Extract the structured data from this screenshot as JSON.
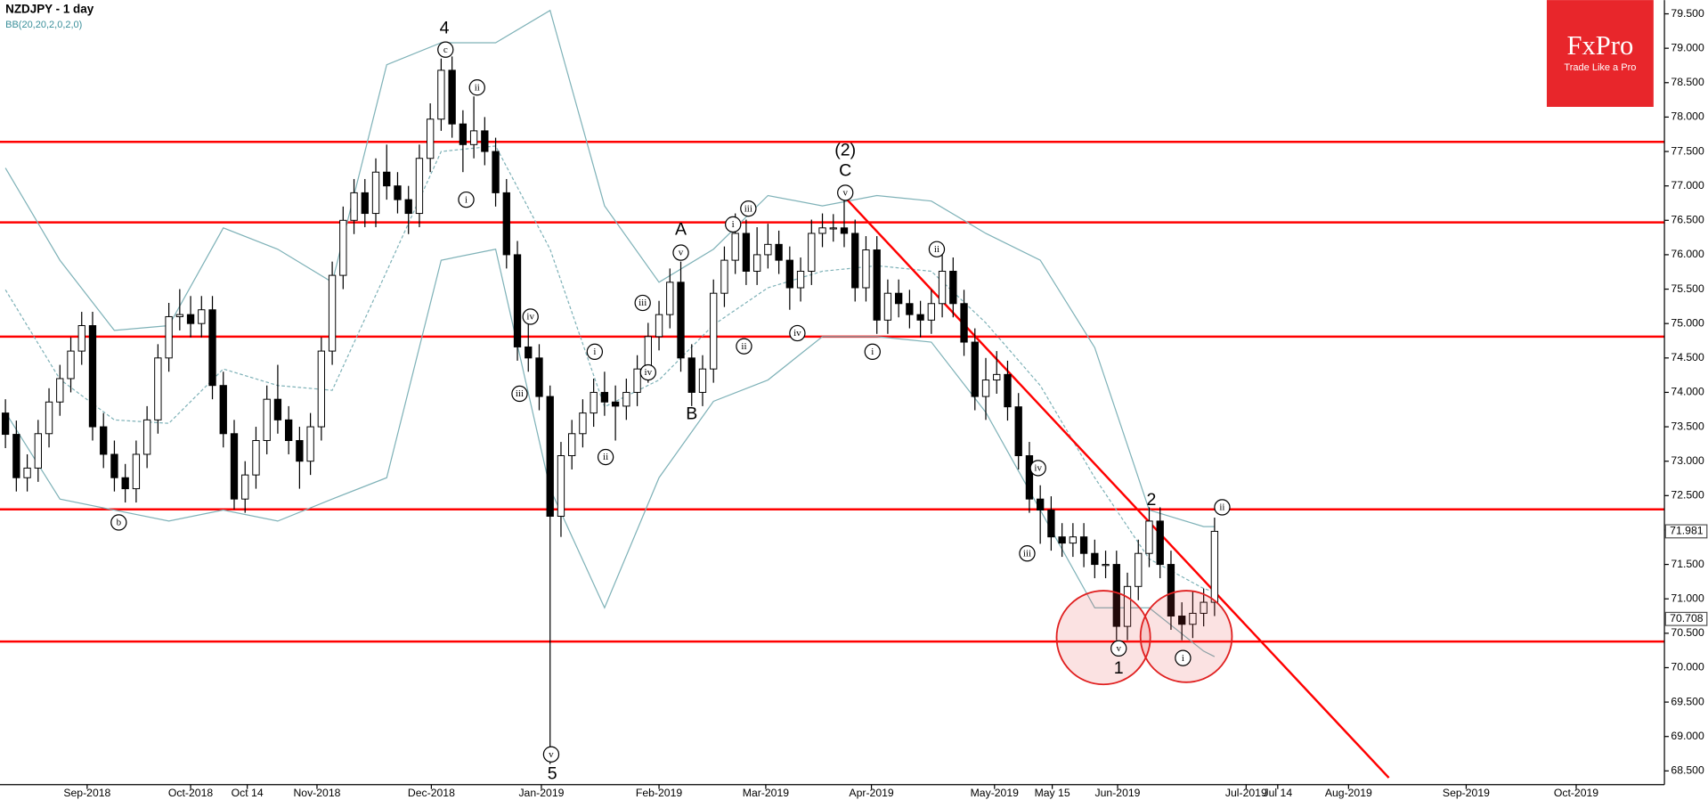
{
  "chart_data": {
    "type": "candlestick",
    "title": "NZDJPY - 1 day",
    "subtitle": "BB(20,20,2,0,2,0)",
    "up_color": "#ffffff",
    "down_color": "#000000",
    "band_color": "#7fb2b8",
    "level_color": "#ff0000",
    "ylim": [
      68.3,
      79.7
    ],
    "xlim": [
      -0.5,
      152.3
    ],
    "yticks": [
      {
        "value": 68.5,
        "label": "68.500"
      },
      {
        "value": 69,
        "label": "69.000"
      },
      {
        "value": 69.5,
        "label": "69.500"
      },
      {
        "value": 70,
        "label": "70.000"
      },
      {
        "value": 70.5,
        "label": "70.500"
      },
      {
        "value": 71,
        "label": "71.000"
      },
      {
        "value": 71.5,
        "label": "71.500"
      },
      {
        "value": 72,
        "label": "72.000"
      },
      {
        "value": 72.5,
        "label": "72.500"
      },
      {
        "value": 73,
        "label": "73.000"
      },
      {
        "value": 73.5,
        "label": "73.500"
      },
      {
        "value": 74,
        "label": "74.000"
      },
      {
        "value": 74.5,
        "label": "74.500"
      },
      {
        "value": 75,
        "label": "75.000"
      },
      {
        "value": 75.5,
        "label": "75.500"
      },
      {
        "value": 76,
        "label": "76.000"
      },
      {
        "value": 76.5,
        "label": "76.500"
      },
      {
        "value": 77,
        "label": "77.000"
      },
      {
        "value": 77.5,
        "label": "77.500"
      },
      {
        "value": 78,
        "label": "78.000"
      },
      {
        "value": 78.5,
        "label": "78.500"
      },
      {
        "value": 79,
        "label": "79.000"
      },
      {
        "value": 79.5,
        "label": "79.500"
      }
    ],
    "xticks": [
      {
        "value": 7.5,
        "label": "Sep-2018"
      },
      {
        "value": 17,
        "label": "Oct-2018"
      },
      {
        "value": 22.2,
        "label": "Oct 14"
      },
      {
        "value": 28.6,
        "label": "Nov-2018"
      },
      {
        "value": 39.1,
        "label": "Dec-2018"
      },
      {
        "value": 49.2,
        "label": "Jan-2019"
      },
      {
        "value": 60,
        "label": "Feb-2019"
      },
      {
        "value": 69.8,
        "label": "Mar-2019"
      },
      {
        "value": 79.5,
        "label": "Apr-2019"
      },
      {
        "value": 90.8,
        "label": "May-2019"
      },
      {
        "value": 96.1,
        "label": "May 15"
      },
      {
        "value": 102.1,
        "label": "Jun-2019"
      },
      {
        "value": 113.9,
        "label": "Jul-2019"
      },
      {
        "value": 116.8,
        "label": "Jul 14"
      },
      {
        "value": 123.3,
        "label": "Aug-2019"
      },
      {
        "value": 134.1,
        "label": "Sep-2019"
      },
      {
        "value": 144.2,
        "label": "Oct-2019"
      }
    ],
    "series": [
      {
        "ohlc": [
          [
            73.7,
            73.9,
            73.19,
            73.39
          ],
          [
            73.39,
            73.59,
            72.56,
            72.76
          ],
          [
            72.76,
            73.1,
            72.56,
            72.9
          ],
          [
            72.9,
            73.6,
            72.7,
            73.4
          ],
          [
            73.4,
            74.06,
            73.2,
            73.86
          ],
          [
            73.86,
            74.4,
            73.66,
            74.2
          ],
          [
            74.2,
            74.8,
            74.0,
            74.6
          ],
          [
            74.6,
            75.17,
            74.4,
            74.97
          ],
          [
            74.97,
            75.17,
            73.3,
            73.5
          ],
          [
            73.5,
            73.7,
            72.9,
            73.1
          ],
          [
            73.1,
            73.3,
            72.56,
            72.76
          ],
          [
            72.76,
            72.96,
            72.4,
            72.6
          ],
          [
            72.6,
            73.3,
            72.4,
            73.1
          ],
          [
            73.1,
            73.8,
            72.9,
            73.6
          ],
          [
            73.6,
            74.7,
            73.4,
            74.5
          ],
          [
            74.5,
            75.3,
            74.3,
            75.1
          ],
          [
            75.1,
            75.5,
            74.9,
            75.13
          ],
          [
            75.13,
            75.4,
            74.8,
            75.0
          ],
          [
            75.0,
            75.4,
            74.8,
            75.2
          ],
          [
            75.2,
            75.4,
            73.9,
            74.1
          ],
          [
            74.1,
            74.3,
            73.2,
            73.4
          ],
          [
            73.4,
            73.6,
            72.3,
            72.45
          ],
          [
            72.45,
            73.0,
            72.25,
            72.8
          ],
          [
            72.8,
            73.5,
            72.6,
            73.3
          ],
          [
            73.3,
            74.1,
            73.1,
            73.9
          ],
          [
            73.9,
            74.4,
            73.4,
            73.6
          ],
          [
            73.6,
            73.8,
            73.1,
            73.3
          ],
          [
            73.3,
            73.5,
            72.6,
            73.0
          ],
          [
            73.0,
            73.7,
            72.8,
            73.5
          ],
          [
            73.5,
            74.8,
            73.3,
            74.6
          ],
          [
            74.6,
            75.9,
            74.4,
            75.7
          ],
          [
            75.7,
            76.7,
            75.5,
            76.5
          ],
          [
            76.5,
            77.1,
            76.3,
            76.9
          ],
          [
            76.9,
            77.1,
            76.4,
            76.6
          ],
          [
            76.6,
            77.4,
            76.4,
            77.2
          ],
          [
            77.2,
            77.6,
            76.8,
            77.0
          ],
          [
            77.0,
            77.2,
            76.6,
            76.8
          ],
          [
            76.8,
            77.0,
            76.3,
            76.6
          ],
          [
            76.6,
            77.6,
            76.4,
            77.4
          ],
          [
            77.4,
            78.2,
            77.2,
            77.97
          ],
          [
            77.97,
            78.85,
            77.8,
            78.68
          ],
          [
            78.68,
            78.88,
            77.7,
            77.9
          ],
          [
            77.9,
            78.1,
            77.2,
            77.6
          ],
          [
            77.6,
            78.3,
            77.4,
            77.8
          ],
          [
            77.8,
            78.0,
            77.3,
            77.5
          ],
          [
            77.5,
            77.7,
            76.7,
            76.9
          ],
          [
            76.9,
            77.1,
            75.8,
            76.0
          ],
          [
            76.0,
            76.2,
            74.46,
            74.66
          ],
          [
            74.66,
            75.0,
            74.3,
            74.5
          ],
          [
            74.5,
            74.7,
            73.74,
            73.94
          ],
          [
            73.94,
            74.1,
            68.6,
            72.2
          ],
          [
            72.2,
            73.28,
            71.9,
            73.08
          ],
          [
            73.08,
            73.6,
            72.88,
            73.4
          ],
          [
            73.4,
            73.9,
            73.2,
            73.7
          ],
          [
            73.7,
            74.2,
            73.5,
            74.0
          ],
          [
            74.0,
            74.3,
            73.66,
            73.86
          ],
          [
            73.86,
            74.1,
            73.3,
            73.8
          ],
          [
            73.8,
            74.2,
            73.6,
            74.0
          ],
          [
            74.0,
            74.54,
            73.8,
            74.34
          ],
          [
            74.34,
            75.01,
            74.14,
            74.81
          ],
          [
            74.81,
            75.33,
            74.61,
            75.13
          ],
          [
            75.13,
            75.8,
            74.93,
            75.6
          ],
          [
            75.6,
            75.9,
            74.3,
            74.5
          ],
          [
            74.5,
            74.7,
            73.8,
            74.0
          ],
          [
            74.0,
            74.54,
            73.8,
            74.34
          ],
          [
            74.34,
            75.64,
            74.14,
            75.44
          ],
          [
            75.44,
            76.12,
            75.24,
            75.92
          ],
          [
            75.92,
            76.6,
            75.72,
            76.31
          ],
          [
            76.31,
            76.51,
            75.56,
            75.76
          ],
          [
            75.76,
            76.4,
            75.56,
            76.0
          ],
          [
            76.0,
            76.45,
            75.8,
            76.15
          ],
          [
            76.15,
            76.35,
            75.72,
            75.92
          ],
          [
            75.92,
            76.12,
            75.2,
            75.52
          ],
          [
            75.52,
            75.96,
            75.32,
            75.76
          ],
          [
            75.76,
            76.51,
            75.56,
            76.31
          ],
          [
            76.31,
            76.6,
            76.11,
            76.39
          ],
          [
            76.39,
            76.59,
            76.19,
            76.39
          ],
          [
            76.39,
            76.8,
            76.11,
            76.31
          ],
          [
            76.31,
            76.51,
            75.32,
            75.52
          ],
          [
            75.52,
            76.27,
            75.32,
            76.07
          ],
          [
            76.07,
            76.27,
            74.85,
            75.05
          ],
          [
            75.05,
            75.64,
            74.85,
            75.44
          ],
          [
            75.44,
            75.64,
            75.09,
            75.29
          ],
          [
            75.29,
            75.49,
            74.93,
            75.13
          ],
          [
            75.13,
            75.33,
            74.8,
            75.05
          ],
          [
            75.05,
            75.49,
            74.85,
            75.29
          ],
          [
            75.29,
            76.0,
            75.09,
            75.76
          ],
          [
            75.76,
            75.96,
            75.09,
            75.29
          ],
          [
            75.29,
            75.49,
            74.53,
            74.73
          ],
          [
            74.73,
            74.93,
            73.74,
            73.94
          ],
          [
            73.94,
            74.5,
            73.6,
            74.18
          ],
          [
            74.18,
            74.6,
            73.98,
            74.26
          ],
          [
            74.26,
            74.46,
            73.59,
            73.79
          ],
          [
            73.79,
            73.99,
            72.88,
            73.08
          ],
          [
            73.08,
            73.28,
            72.25,
            72.45
          ],
          [
            72.45,
            72.65,
            71.8,
            72.29
          ],
          [
            72.29,
            72.49,
            71.7,
            71.9
          ],
          [
            71.9,
            72.1,
            71.61,
            71.81
          ],
          [
            71.81,
            72.1,
            71.61,
            71.9
          ],
          [
            71.9,
            72.1,
            71.46,
            71.66
          ],
          [
            71.66,
            71.86,
            71.3,
            71.5
          ],
          [
            71.5,
            71.7,
            71.3,
            71.5
          ],
          [
            71.5,
            71.7,
            70.4,
            70.6
          ],
          [
            70.6,
            71.38,
            70.4,
            71.18
          ],
          [
            71.18,
            71.86,
            70.98,
            71.66
          ],
          [
            71.66,
            72.33,
            71.46,
            72.13
          ],
          [
            72.13,
            72.33,
            71.3,
            71.5
          ],
          [
            71.5,
            71.7,
            70.55,
            70.75
          ],
          [
            70.75,
            70.95,
            70.4,
            70.63
          ],
          [
            70.63,
            71.1,
            70.43,
            70.79
          ],
          [
            70.79,
            71.15,
            70.6,
            70.95
          ],
          [
            70.95,
            72.18,
            70.75,
            71.981
          ]
        ]
      }
    ],
    "bollinger": {
      "x": [
        0,
        5,
        10,
        15,
        20,
        25,
        30,
        35,
        40,
        45,
        50,
        55,
        60,
        65,
        70,
        75,
        80,
        85,
        90,
        95,
        100,
        105,
        110,
        111
      ],
      "upper": [
        77.26,
        75.92,
        74.9,
        74.97,
        76.39,
        76.08,
        75.6,
        78.76,
        79.08,
        79.08,
        79.55,
        76.71,
        75.6,
        76.08,
        76.86,
        76.71,
        76.86,
        76.78,
        76.31,
        75.92,
        74.65,
        72.29,
        72.05,
        72.05
      ],
      "middle": [
        75.49,
        74.19,
        73.6,
        73.55,
        74.34,
        74.1,
        74.03,
        75.76,
        77.5,
        77.58,
        76.08,
        73.79,
        74.18,
        74.98,
        75.52,
        75.76,
        75.84,
        75.76,
        75.01,
        74.1,
        72.76,
        71.58,
        71.15,
        71.1
      ],
      "lower": [
        73.71,
        72.45,
        72.29,
        72.13,
        72.29,
        72.13,
        72.45,
        72.76,
        75.92,
        76.08,
        72.6,
        70.87,
        72.76,
        73.87,
        74.18,
        74.81,
        74.81,
        74.73,
        73.71,
        72.29,
        70.87,
        70.87,
        70.24,
        70.16
      ]
    },
    "levels": [
      77.64,
      76.47,
      74.81,
      72.3,
      70.38
    ],
    "trendline": {
      "x": [
        76.5,
        127
      ],
      "y": [
        76.93,
        68.4
      ]
    },
    "price_tags": [
      71.981,
      70.708
    ],
    "annotations": [
      {
        "text": "4",
        "x": 40.3,
        "y": 79.28,
        "circled": false
      },
      {
        "text": "c",
        "x": 40.4,
        "y": 78.98,
        "circled": true
      },
      {
        "text": "ii",
        "x": 43.3,
        "y": 78.43,
        "circled": true
      },
      {
        "text": "i",
        "x": 42.3,
        "y": 76.8,
        "circled": true
      },
      {
        "text": "b",
        "x": 10.4,
        "y": 72.11,
        "circled": true
      },
      {
        "text": "iv",
        "x": 48.2,
        "y": 75.1,
        "circled": true
      },
      {
        "text": "iii",
        "x": 47.2,
        "y": 73.98,
        "circled": true
      },
      {
        "text": "v",
        "x": 50.1,
        "y": 68.74,
        "circled": true
      },
      {
        "text": "5",
        "x": 50.2,
        "y": 68.45,
        "circled": false
      },
      {
        "text": "i",
        "x": 54.1,
        "y": 74.59,
        "circled": true
      },
      {
        "text": "ii",
        "x": 55.1,
        "y": 73.06,
        "circled": true
      },
      {
        "text": "iii",
        "x": 58.5,
        "y": 75.3,
        "circled": true
      },
      {
        "text": "iv",
        "x": 59,
        "y": 74.29,
        "circled": true
      },
      {
        "text": "A",
        "x": 62,
        "y": 76.36,
        "circled": false
      },
      {
        "text": "v",
        "x": 62,
        "y": 76.03,
        "circled": true
      },
      {
        "text": "B",
        "x": 63,
        "y": 73.68,
        "circled": false
      },
      {
        "text": "i",
        "x": 66.8,
        "y": 76.44,
        "circled": true
      },
      {
        "text": "iii",
        "x": 68.2,
        "y": 76.67,
        "circled": true
      },
      {
        "text": "ii",
        "x": 67.8,
        "y": 74.67,
        "circled": true
      },
      {
        "text": "iv",
        "x": 72.7,
        "y": 74.86,
        "circled": true
      },
      {
        "text": "(2)",
        "x": 77.1,
        "y": 77.51,
        "circled": false
      },
      {
        "text": "C",
        "x": 77.1,
        "y": 77.21,
        "circled": false
      },
      {
        "text": "v",
        "x": 77.1,
        "y": 76.9,
        "circled": true
      },
      {
        "text": "i",
        "x": 79.6,
        "y": 74.59,
        "circled": true
      },
      {
        "text": "ii",
        "x": 85.5,
        "y": 76.08,
        "circled": true
      },
      {
        "text": "iv",
        "x": 94.8,
        "y": 72.9,
        "circled": true
      },
      {
        "text": "iii",
        "x": 93.8,
        "y": 71.66,
        "circled": true
      },
      {
        "text": "2",
        "x": 105.2,
        "y": 72.43,
        "circled": false
      },
      {
        "text": "ii",
        "x": 111.7,
        "y": 72.33,
        "circled": true
      },
      {
        "text": "v",
        "x": 102.2,
        "y": 70.28,
        "circled": true
      },
      {
        "text": "1",
        "x": 102.2,
        "y": 69.98,
        "circled": false
      },
      {
        "text": "i",
        "x": 108.1,
        "y": 70.14,
        "circled": true
      }
    ]
  },
  "logo": {
    "name": "FxPro",
    "slogan": "Trade Like a Pro"
  }
}
